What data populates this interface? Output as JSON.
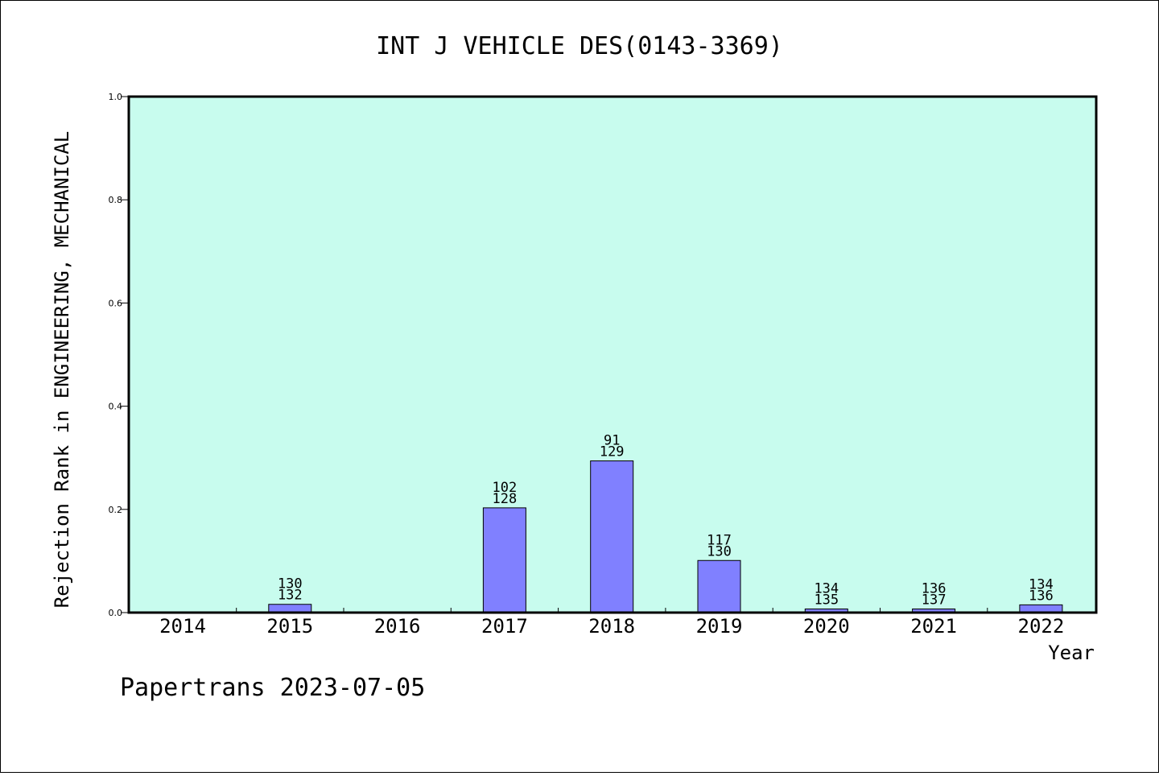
{
  "chart_data": {
    "type": "bar",
    "title": "INT J VEHICLE DES(0143-3369)",
    "xlabel": "Year",
    "ylabel": "Rejection Rank in ENGINEERING, MECHANICAL",
    "ylim": [
      0,
      1.0
    ],
    "yticks": [
      "0.0",
      "0.2",
      "0.4",
      "0.6",
      "0.8",
      "1.0"
    ],
    "categories": [
      "2014",
      "2015",
      "2016",
      "2017",
      "2018",
      "2019",
      "2020",
      "2021",
      "2022"
    ],
    "values": [
      0,
      0.016,
      0,
      0.203,
      0.294,
      0.101,
      0.007,
      0.007,
      0.015
    ],
    "bar_labels": [
      [
        "",
        ""
      ],
      [
        "130",
        "132"
      ],
      [
        "",
        ""
      ],
      [
        "102",
        "128"
      ],
      [
        "91",
        "129"
      ],
      [
        "117",
        "130"
      ],
      [
        "134",
        "135"
      ],
      [
        "136",
        "137"
      ],
      [
        "134",
        "136"
      ]
    ],
    "grid": false,
    "colors": {
      "plot_background": "#c8fcee",
      "bar_fill": "#8080ff",
      "bar_stroke": "#000000"
    }
  },
  "footer": "Papertrans 2023-07-05"
}
